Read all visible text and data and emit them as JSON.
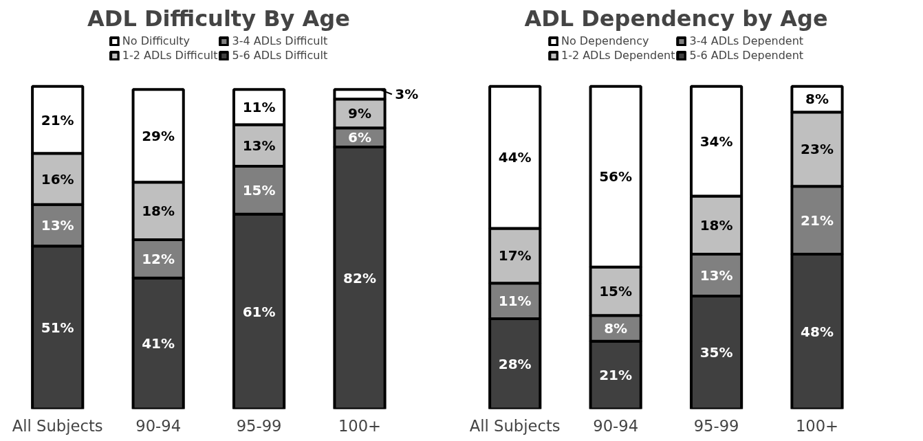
{
  "chart_data": [
    {
      "type": "bar",
      "title": "ADL Difficulty By Age",
      "categories": [
        "All Subjects",
        "90-94",
        "95-99",
        "100+"
      ],
      "stacked": true,
      "legend": "top",
      "tick_labels": "x",
      "grid": false,
      "series": [
        {
          "name": "5-6 ADLs Difficult",
          "color": "#404040",
          "values": [
            51,
            41,
            61,
            82
          ],
          "value_labels": [
            "51%",
            "41%",
            "61%",
            "82%"
          ]
        },
        {
          "name": "3-4 ADLs Difficult",
          "color": "#808080",
          "values": [
            13,
            12,
            15,
            6
          ],
          "value_labels": [
            "13%",
            "12%",
            "15%",
            "6%"
          ]
        },
        {
          "name": "1-2 ADLs Difficult",
          "color": "#bfbfbf",
          "values": [
            16,
            18,
            13,
            9
          ],
          "value_labels": [
            "16%",
            "18%",
            "13%",
            "9%"
          ]
        },
        {
          "name": "No Difficulty",
          "color": "#ffffff",
          "values": [
            21,
            29,
            11,
            3
          ],
          "value_labels": [
            "21%",
            "29%",
            "11%",
            "3%"
          ]
        }
      ]
    },
    {
      "type": "bar",
      "title": "ADL Dependency by Age",
      "categories": [
        "All Subjects",
        "90-94",
        "95-99",
        "100+"
      ],
      "stacked": true,
      "legend": "top",
      "tick_labels": "x",
      "grid": false,
      "series": [
        {
          "name": "5-6 ADLs Dependent",
          "color": "#404040",
          "values": [
            28,
            21,
            35,
            48
          ],
          "value_labels": [
            "28%",
            "21%",
            "35%",
            "48%"
          ]
        },
        {
          "name": "3-4 ADLs Dependent",
          "color": "#808080",
          "values": [
            11,
            8,
            13,
            21
          ],
          "value_labels": [
            "11%",
            "8%",
            "13%",
            "21%"
          ]
        },
        {
          "name": "1-2 ADLs Dependent",
          "color": "#bfbfbf",
          "values": [
            17,
            15,
            18,
            23
          ],
          "value_labels": [
            "17%",
            "15%",
            "18%",
            "23%"
          ]
        },
        {
          "name": "No Dependency",
          "color": "#ffffff",
          "values": [
            44,
            56,
            34,
            8
          ],
          "value_labels": [
            "44%",
            "56%",
            "34%",
            "8%"
          ]
        }
      ]
    }
  ]
}
